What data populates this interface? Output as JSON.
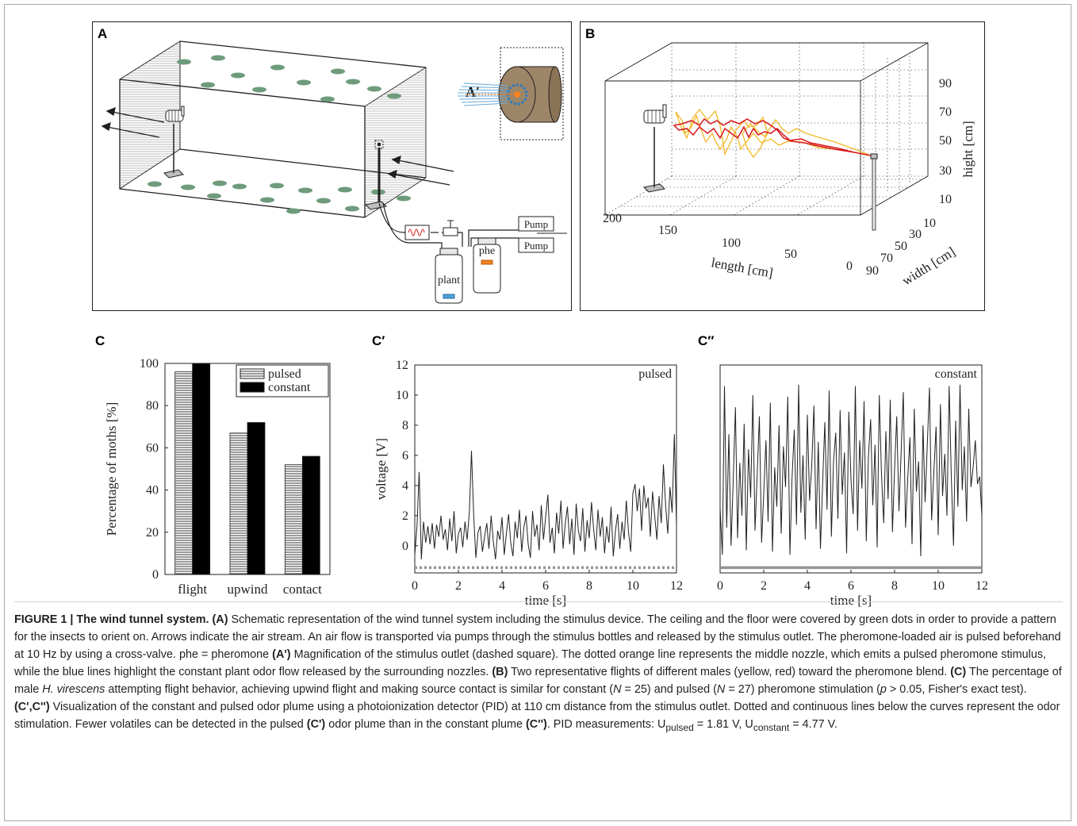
{
  "panels": {
    "A": {
      "letter": "A",
      "letter_prime": "A′",
      "pump1": "Pump",
      "pump2": "Pump",
      "bottle_plant": "plant",
      "bottle_phe": "phe"
    },
    "B": {
      "letter": "B",
      "axis_length_label": "length [cm]",
      "axis_width_label": "width [cm]",
      "axis_height_label": "hight [cm]",
      "length_ticks": [
        "200",
        "150",
        "100",
        "50",
        "0"
      ],
      "width_ticks": [
        "90",
        "70",
        "50",
        "30",
        "10"
      ],
      "height_ticks": [
        "90",
        "70",
        "50",
        "30",
        "10"
      ],
      "flight_colors": {
        "yellow": "#f2b824",
        "red": "#d7191c"
      }
    }
  },
  "chart_data": [
    {
      "id": "C",
      "letter": "C",
      "type": "bar",
      "categories": [
        "flight",
        "upwind",
        "contact"
      ],
      "series": [
        {
          "name": "pulsed",
          "values": [
            96,
            67,
            52
          ]
        },
        {
          "name": "constant",
          "values": [
            100,
            72,
            56
          ]
        }
      ],
      "ylabel": "Percentage of moths [%]",
      "xlabel": "",
      "ylim": [
        0,
        100
      ],
      "yticks": [
        "0",
        "20",
        "40",
        "60",
        "80",
        "100"
      ],
      "legend": "top-right"
    },
    {
      "id": "Cprime",
      "letter": "C′",
      "type": "line",
      "annotation": "pulsed",
      "xlabel": "time [s]",
      "ylabel": "voltage [V]",
      "xlim": [
        0,
        12
      ],
      "ylim": [
        -1.8,
        12
      ],
      "xticks": [
        "0",
        "2",
        "4",
        "6",
        "8",
        "10",
        "12"
      ],
      "yticks": [
        "0",
        "2",
        "4",
        "6",
        "8",
        "10",
        "12"
      ],
      "stimulus": "dotted",
      "x": [
        0,
        0.1,
        0.2,
        0.3,
        0.4,
        0.5,
        0.6,
        0.7,
        0.8,
        0.9,
        1.0,
        1.1,
        1.2,
        1.3,
        1.4,
        1.5,
        1.6,
        1.7,
        1.8,
        1.9,
        2.0,
        2.1,
        2.2,
        2.3,
        2.4,
        2.5,
        2.6,
        2.7,
        2.8,
        2.9,
        3.0,
        3.1,
        3.2,
        3.3,
        3.4,
        3.5,
        3.6,
        3.7,
        3.8,
        3.9,
        4.0,
        4.1,
        4.2,
        4.3,
        4.4,
        4.5,
        4.6,
        4.7,
        4.8,
        4.9,
        5.0,
        5.1,
        5.2,
        5.3,
        5.4,
        5.5,
        5.6,
        5.7,
        5.8,
        5.9,
        6.0,
        6.1,
        6.2,
        6.3,
        6.4,
        6.5,
        6.6,
        6.7,
        6.8,
        6.9,
        7.0,
        7.1,
        7.2,
        7.3,
        7.4,
        7.5,
        7.6,
        7.7,
        7.8,
        7.9,
        8.0,
        8.1,
        8.2,
        8.3,
        8.4,
        8.5,
        8.6,
        8.7,
        8.8,
        8.9,
        9.0,
        9.1,
        9.2,
        9.3,
        9.4,
        9.5,
        9.6,
        9.7,
        9.8,
        9.9,
        10.0,
        10.1,
        10.2,
        10.3,
        10.4,
        10.5,
        10.6,
        10.7,
        10.8,
        10.9,
        11.0,
        11.1,
        11.2,
        11.3,
        11.4,
        11.5,
        11.6,
        11.7,
        11.8,
        11.9,
        12.0
      ],
      "y": [
        -0.6,
        1.3,
        4.9,
        -0.9,
        1.6,
        0.2,
        1.3,
        0.1,
        1.5,
        -0.2,
        1.4,
        0.6,
        2.0,
        0.4,
        1.1,
        -0.3,
        1.8,
        0.3,
        2.3,
        -0.5,
        0.8,
        1.2,
        -0.1,
        1.6,
        0.4,
        2.2,
        6.3,
        2.0,
        -0.8,
        0.9,
        1.3,
        -0.4,
        0.6,
        1.5,
        -0.2,
        2.0,
        0.3,
        -0.9,
        1.0,
        0.4,
        1.9,
        -0.6,
        0.8,
        2.1,
        0.2,
        -0.7,
        1.6,
        0.5,
        2.4,
        -0.4,
        1.2,
        2.0,
        0.1,
        -0.8,
        2.3,
        0.6,
        1.4,
        -0.3,
        2.7,
        0.4,
        1.9,
        3.4,
        0.2,
        1.2,
        -0.5,
        2.2,
        0.8,
        3.0,
        -0.2,
        1.5,
        2.6,
        0.1,
        1.8,
        -0.6,
        2.8,
        1.0,
        0.3,
        2.5,
        -0.4,
        1.7,
        0.5,
        2.9,
        1.1,
        -0.3,
        2.4,
        0.6,
        1.9,
        -0.5,
        1.3,
        0.2,
        2.6,
        -0.7,
        1.0,
        2.1,
        -0.2,
        1.6,
        0.4,
        3.0,
        0.9,
        -0.4,
        3.5,
        4.1,
        2.3,
        3.8,
        1.0,
        4.0,
        2.5,
        3.2,
        0.6,
        3.6,
        2.0,
        0.4,
        3.3,
        1.5,
        5.4,
        2.7,
        0.8,
        3.9,
        2.2,
        7.4,
        1.4
      ]
    },
    {
      "id": "Cdoubleprime",
      "letter": "C″",
      "type": "line",
      "annotation": "constant",
      "xlabel": "time [s]",
      "ylabel": "",
      "xlim": [
        0,
        12
      ],
      "ylim": [
        -1.8,
        12
      ],
      "xticks": [
        "0",
        "2",
        "4",
        "6",
        "8",
        "10",
        "12"
      ],
      "yticks": [],
      "stimulus": "continuous",
      "x": [
        0,
        0.1,
        0.2,
        0.3,
        0.4,
        0.5,
        0.6,
        0.7,
        0.8,
        0.9,
        1.0,
        1.1,
        1.2,
        1.3,
        1.4,
        1.5,
        1.6,
        1.7,
        1.8,
        1.9,
        2.0,
        2.1,
        2.2,
        2.3,
        2.4,
        2.5,
        2.6,
        2.7,
        2.8,
        2.9,
        3.0,
        3.1,
        3.2,
        3.3,
        3.4,
        3.5,
        3.6,
        3.7,
        3.8,
        3.9,
        4.0,
        4.1,
        4.2,
        4.3,
        4.4,
        4.5,
        4.6,
        4.7,
        4.8,
        4.9,
        5.0,
        5.1,
        5.2,
        5.3,
        5.4,
        5.5,
        5.6,
        5.7,
        5.8,
        5.9,
        6.0,
        6.1,
        6.2,
        6.3,
        6.4,
        6.5,
        6.6,
        6.7,
        6.8,
        6.9,
        7.0,
        7.1,
        7.2,
        7.3,
        7.4,
        7.5,
        7.6,
        7.7,
        7.8,
        7.9,
        8.0,
        8.1,
        8.2,
        8.3,
        8.4,
        8.5,
        8.6,
        8.7,
        8.8,
        8.9,
        9.0,
        9.1,
        9.2,
        9.3,
        9.4,
        9.5,
        9.6,
        9.7,
        9.8,
        9.9,
        10.0,
        10.1,
        10.2,
        10.3,
        10.4,
        10.5,
        10.6,
        10.7,
        10.8,
        10.9,
        11.0,
        11.1,
        11.2,
        11.3,
        11.4,
        11.5,
        11.6,
        11.7,
        11.8,
        11.9,
        12.0
      ],
      "y": [
        2.5,
        -0.6,
        10.6,
        1.2,
        7.4,
        0.0,
        4.3,
        9.2,
        0.5,
        5.5,
        2.0,
        8.1,
        -0.3,
        6.4,
        3.2,
        10.0,
        1.0,
        4.8,
        8.6,
        0.2,
        3.5,
        7.0,
        1.6,
        9.5,
        -0.4,
        5.2,
        2.6,
        8.0,
        0.8,
        6.6,
        3.9,
        9.9,
        -0.6,
        4.5,
        7.7,
        1.4,
        10.7,
        2.2,
        6.0,
        0.4,
        8.7,
        3.0,
        5.3,
        9.3,
        1.1,
        6.9,
        -0.2,
        4.2,
        8.2,
        2.4,
        10.3,
        0.6,
        5.6,
        7.5,
        1.8,
        9.0,
        3.4,
        6.2,
        -0.5,
        8.9,
        4.4,
        2.1,
        10.6,
        1.0,
        7.0,
        3.8,
        9.6,
        0.3,
        5.9,
        8.4,
        2.7,
        6.7,
        -0.1,
        10.0,
        4.7,
        1.5,
        7.6,
        3.1,
        9.7,
        0.9,
        5.1,
        8.6,
        2.3,
        6.3,
        10.2,
        1.2,
        4.4,
        7.2,
        0.1,
        9.1,
        3.6,
        5.6,
        -0.7,
        8.0,
        2.9,
        6.8,
        10.5,
        1.7,
        4.9,
        7.9,
        0.7,
        9.4,
        3.3,
        6.1,
        2.0,
        10.6,
        4.6,
        0.0,
        8.3,
        2.6,
        10.7,
        3.7,
        6.6,
        1.6,
        9.1,
        3.9,
        5.2,
        7.0,
        4.1,
        4.6,
        2.0
      ]
    }
  ],
  "caption": {
    "fig_label": "FIGURE 1 | The wind tunnel system.",
    "a_label": "(A)",
    "a_text": "Schematic representation of the wind tunnel system including the stimulus device. The ceiling and the floor were covered by green dots in order to provide a pattern for the insects to orient on. Arrows indicate the air stream. An air flow is transported via pumps through the stimulus bottles and released by the stimulus outlet. The pheromone-loaded air is pulsed beforehand at 10 Hz by using a cross-valve. phe = pheromone",
    "ap_label": "(A')",
    "ap_text": "Magnification of the stimulus outlet (dashed square). The dotted orange line represents the middle nozzle, which emits a pulsed pheromone stimulus, while the blue lines highlight the constant plant odor flow released by the surrounding nozzles.",
    "b_label": "(B)",
    "b_text": "Two representative flights of different males (yellow, red) toward the pheromone blend.",
    "c_label": "(C)",
    "c_text1": "The percentage of male",
    "c_species": "H. virescens",
    "c_text2": "attempting flight behavior, achieving upwind flight and making source contact is similar for constant (",
    "c_n1_var": "N",
    "c_n1": "= 25) and pulsed (",
    "c_n2_var": "N",
    "c_n2": "= 27) pheromone stimulation (",
    "c_p_var": "p",
    "c_p": "> 0.05, Fisher's exact test).",
    "cc_label": "(C',C'')",
    "cc_text": "Visualization of the constant and pulsed odor plume using a photoionization detector (PID) at 110 cm distance from the stimulus outlet. Dotted and continuous lines below the curves represent the odor stimulation. Fewer volatiles can be detected in the pulsed",
    "cp_label": "(C')",
    "cc_text2": "odor plume than in the constant plume",
    "cpp_label": "(C'')",
    "cc_text3": ". PID measurements: U",
    "u_pulsed_sub": "pulsed",
    "u_pulsed_val": "= 1.81 V, U",
    "u_const_sub": "constant",
    "u_const_val": "= 4.77 V."
  }
}
